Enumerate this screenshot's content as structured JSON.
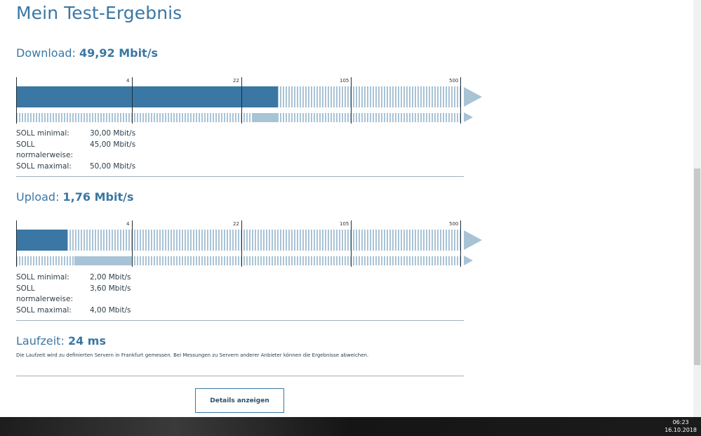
{
  "page": {
    "title": "Mein Test-Ergebnis"
  },
  "ticks": [
    "4",
    "22",
    "105",
    "500"
  ],
  "download": {
    "label": "Download:",
    "value": "49,92 Mbit/s",
    "measured_mbits": 49.92,
    "soll": [
      {
        "key": "SOLL minimal:",
        "value": "30,00 Mbit/s"
      },
      {
        "key": "SOLL normalerweise:",
        "value": "45,00 Mbit/s"
      },
      {
        "key": "SOLL maximal:",
        "value": "50,00 Mbit/s"
      }
    ],
    "soll_range_mbits": [
      30,
      50
    ]
  },
  "upload": {
    "label": "Upload:",
    "value": "1,76 Mbit/s",
    "measured_mbits": 1.76,
    "soll": [
      {
        "key": "SOLL minimal:",
        "value": "2,00 Mbit/s"
      },
      {
        "key": "SOLL normalerweise:",
        "value": "3,60 Mbit/s"
      },
      {
        "key": "SOLL maximal:",
        "value": "4,00 Mbit/s"
      }
    ],
    "soll_range_mbits": [
      2,
      4
    ]
  },
  "latency": {
    "label": "Laufzeit:",
    "value": "24 ms",
    "note": "Die Laufzeit wird zu definierten Servern in Frankfurt gemessen. Bei Messungen zu Servern anderer Anbieter können die Ergebnisse abweichen."
  },
  "buttons": {
    "details": "Details anzeigen"
  },
  "taskbar": {
    "time": "06:23",
    "date": "16.10.2018"
  },
  "colors": {
    "accent": "#3a77a4",
    "accent_light": "#a9c3d6"
  }
}
